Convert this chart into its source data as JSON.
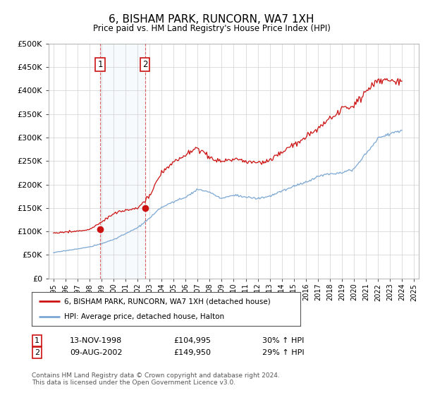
{
  "title": "6, BISHAM PARK, RUNCORN, WA7 1XH",
  "subtitle": "Price paid vs. HM Land Registry's House Price Index (HPI)",
  "ylim": [
    0,
    500000
  ],
  "yticks": [
    0,
    50000,
    100000,
    150000,
    200000,
    250000,
    300000,
    350000,
    400000,
    450000,
    500000
  ],
  "ytick_labels": [
    "£0",
    "£50K",
    "£100K",
    "£150K",
    "£200K",
    "£250K",
    "£300K",
    "£350K",
    "£400K",
    "£450K",
    "£500K"
  ],
  "hpi_color": "#7ba7d4",
  "price_color": "#cc1111",
  "background_color": "#ffffff",
  "plot_bg_color": "#ffffff",
  "grid_color": "#d0d0d0",
  "transaction1": {
    "date": "13-NOV-1998",
    "price": 104995,
    "label": "1",
    "hpi_change": "30% ↑ HPI",
    "x_year": 1998.88
  },
  "transaction2": {
    "date": "09-AUG-2002",
    "price": 149950,
    "label": "2",
    "hpi_change": "29% ↑ HPI",
    "x_year": 2002.62
  },
  "legend_property": "6, BISHAM PARK, RUNCORN, WA7 1XH (detached house)",
  "legend_hpi": "HPI: Average price, detached house, Halton",
  "footer": "Contains HM Land Registry data © Crown copyright and database right 2024.\nThis data is licensed under the Open Government Licence v3.0.",
  "xlim_start": 1994.6,
  "xlim_end": 2025.4,
  "hpi_anchors": {
    "1995": 55000,
    "1996": 59000,
    "1997": 63000,
    "1998": 67000,
    "1999": 74000,
    "2000": 83000,
    "2001": 95000,
    "2002": 108000,
    "2003": 128000,
    "2004": 152000,
    "2005": 163000,
    "2006": 173000,
    "2007": 190000,
    "2008": 183000,
    "2009": 170000,
    "2010": 178000,
    "2011": 173000,
    "2012": 170000,
    "2013": 175000,
    "2014": 186000,
    "2015": 196000,
    "2016": 205000,
    "2017": 217000,
    "2018": 223000,
    "2019": 226000,
    "2020": 233000,
    "2021": 265000,
    "2022": 298000,
    "2023": 308000,
    "2024": 315000
  },
  "prop_anchors": {
    "1995": 97000,
    "1996": 99000,
    "1997": 101000,
    "1998": 103500,
    "1999": 120000,
    "2000": 138000,
    "2001": 145000,
    "2002": 150000,
    "2003": 175000,
    "2004": 225000,
    "2005": 248000,
    "2006": 262000,
    "2007": 278000,
    "2008": 258000,
    "2009": 248000,
    "2010": 255000,
    "2011": 248000,
    "2012": 245000,
    "2013": 252000,
    "2014": 268000,
    "2015": 285000,
    "2016": 300000,
    "2017": 318000,
    "2018": 340000,
    "2019": 358000,
    "2020": 368000,
    "2021": 398000,
    "2022": 425000,
    "2023": 418000,
    "2024": 420000
  }
}
